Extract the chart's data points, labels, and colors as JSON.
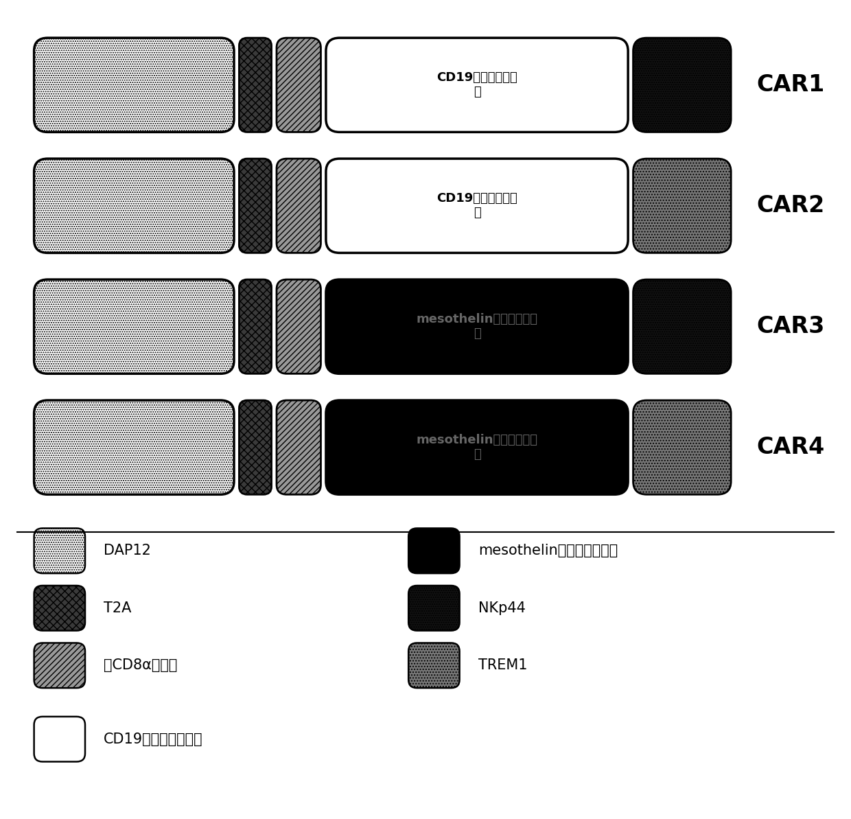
{
  "fig_width": 12.4,
  "fig_height": 11.93,
  "dpi": 100,
  "background_color": "#ffffff",
  "rows": [
    {
      "label": "CAR1",
      "middle_fc": "#ffffff",
      "middle_hatch": "",
      "middle_text": "CD19抗原结合结构\n域",
      "middle_tc": "#000000",
      "right_fc": "#111111",
      "right_hatch": ".....",
      "dap12_fc": "#ffffff",
      "dap12_hatch": ".....",
      "t2a_fc": "#3a3a3a",
      "t2a_hatch": "xxx",
      "hcd8a_fc": "#999999",
      "hcd8a_hatch": "////"
    },
    {
      "label": "CAR2",
      "middle_fc": "#ffffff",
      "middle_hatch": "",
      "middle_text": "CD19抗原结合结构\n域",
      "middle_tc": "#000000",
      "right_fc": "#777777",
      "right_hatch": "....",
      "dap12_fc": "#ffffff",
      "dap12_hatch": ".....",
      "t2a_fc": "#3a3a3a",
      "t2a_hatch": "xxx",
      "hcd8a_fc": "#999999",
      "hcd8a_hatch": "////"
    },
    {
      "label": "CAR3",
      "middle_fc": "#000000",
      "middle_hatch": "",
      "middle_text": "mesothelin抗原结合结构\n域",
      "middle_tc": "#666666",
      "right_fc": "#111111",
      "right_hatch": ".....",
      "dap12_fc": "#ffffff",
      "dap12_hatch": ".....",
      "t2a_fc": "#3a3a3a",
      "t2a_hatch": "xxx",
      "hcd8a_fc": "#999999",
      "hcd8a_hatch": "////"
    },
    {
      "label": "CAR4",
      "middle_fc": "#000000",
      "middle_hatch": "",
      "middle_text": "mesothelin抗原结合结构\n域",
      "middle_tc": "#666666",
      "right_fc": "#777777",
      "right_hatch": "....",
      "dap12_fc": "#ffffff",
      "dap12_hatch": ".....",
      "t2a_fc": "#3a3a3a",
      "t2a_hatch": "xxx",
      "hcd8a_fc": "#999999",
      "hcd8a_hatch": "////"
    }
  ],
  "legend_left": [
    {
      "fc": "#ffffff",
      "hatch": ".....",
      "ec": "#000000",
      "text": "DAP12"
    },
    {
      "fc": "#3a3a3a",
      "hatch": "xxx",
      "ec": "#000000",
      "text": "T2A"
    },
    {
      "fc": "#999999",
      "hatch": "////",
      "ec": "#000000",
      "text": "人CD8α信号肽"
    },
    {
      "fc": "#ffffff",
      "hatch": "",
      "ec": "#000000",
      "text": "CD19抗原结合结构域"
    }
  ],
  "legend_right": [
    {
      "fc": "#000000",
      "hatch": "",
      "ec": "#000000",
      "text": "mesothelin抗原结合结构域"
    },
    {
      "fc": "#111111",
      "hatch": ".....",
      "ec": "#000000",
      "text": "NKp44"
    },
    {
      "fc": "#777777",
      "hatch": "....",
      "ec": "#000000",
      "text": "TREM1"
    }
  ]
}
